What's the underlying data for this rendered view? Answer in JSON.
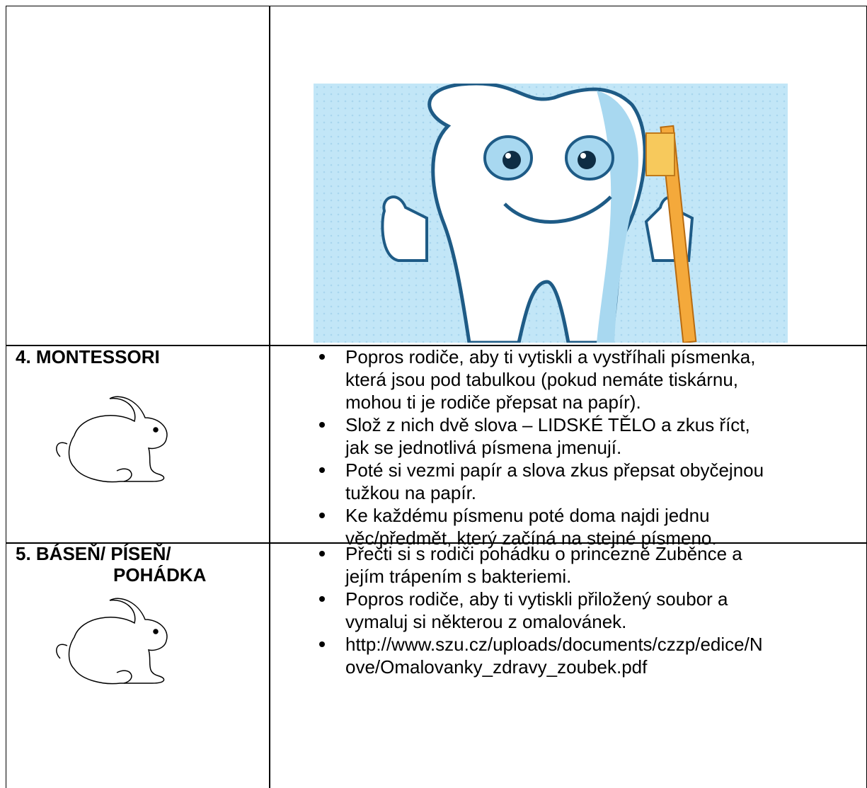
{
  "table": {
    "rows": [
      {
        "label_lines": [],
        "bullets": []
      },
      {
        "label_lines": [
          "4. MONTESSORI"
        ],
        "bullets": [
          [
            "Popros rodiče, aby ti vytiskli a vystříhali písmenka,",
            "která jsou pod tabulkou (pokud nemáte tiskárnu,",
            "mohou ti je rodiče přepsat na papír)."
          ],
          [
            "Slož z nich dvě slova – LIDSKÉ TĚLO a zkus říct,",
            "jak se jednotlivá písmena jmenují."
          ],
          [
            "Poté si vezmi papír a slova zkus přepsat obyčejnou",
            "tužkou na papír."
          ],
          [
            "Ke každému písmenu poté doma najdi jednu",
            "věc/předmět, který začíná na stejné písmeno."
          ]
        ]
      },
      {
        "label_lines": [
          "5. BÁSEŇ/ PÍSEŇ/",
          "POHÁDKA"
        ],
        "bullets": [
          [
            "Přečti si s rodiči pohádku o princezně Zuběnce a",
            "jejím trápením s bakteriemi."
          ],
          [
            "Popros rodiče, aby ti vytiskli přiložený soubor a",
            "vymaluj si některou z omalovánek."
          ],
          [
            "http://www.szu.cz/uploads/documents/czzp/edice/N",
            "ove/Omalovanky_zdravy_zoubek.pdf"
          ]
        ]
      }
    ]
  }
}
